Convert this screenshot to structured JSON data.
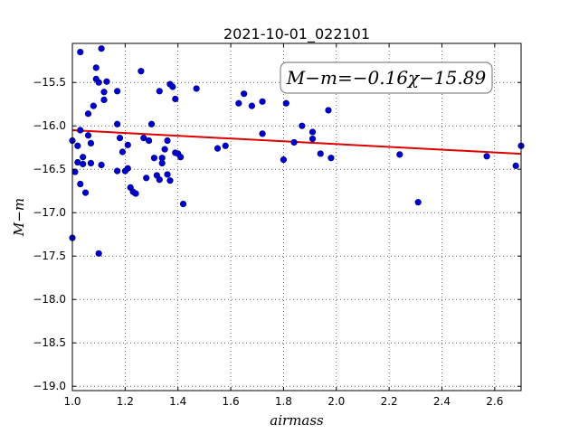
{
  "chart_data": {
    "type": "scatter",
    "title": "2021-10-01_022101",
    "xlabel": "airmass",
    "ylabel": "M−m",
    "xlim": [
      1.0,
      2.7
    ],
    "ylim": [
      -19.05,
      -15.05
    ],
    "y_inverted": true,
    "grid": true,
    "grid_style": "dotted",
    "x_ticks": [
      1.0,
      1.2,
      1.4,
      1.6,
      1.8,
      2.0,
      2.2,
      2.4,
      2.6
    ],
    "x_tick_labels": [
      "1.0",
      "1.2",
      "1.4",
      "1.6",
      "1.8",
      "2.0",
      "2.2",
      "2.4",
      "2.6"
    ],
    "y_ticks": [
      -15.5,
      -16.0,
      -16.5,
      -17.0,
      -17.5,
      -18.0,
      -18.5,
      -19.0
    ],
    "y_tick_labels": [
      "−15.5",
      "−16.0",
      "−16.5",
      "−17.0",
      "−17.5",
      "−18.0",
      "−18.5",
      "−19.0"
    ],
    "annotation": "M−m=−0.16χ−15.89",
    "marker_color": "#0000cc",
    "marker_edge_color": "#00007a",
    "fit_color": "#dd0000",
    "fit": {
      "slope": -0.16,
      "intercept": -15.89
    },
    "points": [
      [
        1.0,
        -16.17
      ],
      [
        1.0,
        -17.29
      ],
      [
        1.01,
        -16.53
      ],
      [
        1.02,
        -16.42
      ],
      [
        1.02,
        -16.23
      ],
      [
        1.03,
        -15.15
      ],
      [
        1.03,
        -16.05
      ],
      [
        1.03,
        -16.67
      ],
      [
        1.04,
        -16.36
      ],
      [
        1.04,
        -16.44
      ],
      [
        1.05,
        -16.77
      ],
      [
        1.06,
        -15.86
      ],
      [
        1.06,
        -16.11
      ],
      [
        1.07,
        -16.43
      ],
      [
        1.07,
        -16.2
      ],
      [
        1.08,
        -15.77
      ],
      [
        1.09,
        -15.33
      ],
      [
        1.09,
        -15.46
      ],
      [
        1.1,
        -15.5
      ],
      [
        1.1,
        -17.47
      ],
      [
        1.11,
        -15.11
      ],
      [
        1.11,
        -16.45
      ],
      [
        1.12,
        -15.7
      ],
      [
        1.12,
        -15.61
      ],
      [
        1.13,
        -15.49
      ],
      [
        1.17,
        -16.52
      ],
      [
        1.17,
        -15.98
      ],
      [
        1.17,
        -15.6
      ],
      [
        1.18,
        -16.14
      ],
      [
        1.19,
        -16.3
      ],
      [
        1.2,
        -16.52
      ],
      [
        1.21,
        -16.22
      ],
      [
        1.21,
        -16.49
      ],
      [
        1.22,
        -16.71
      ],
      [
        1.23,
        -16.76
      ],
      [
        1.24,
        -16.78
      ],
      [
        1.26,
        -15.37
      ],
      [
        1.27,
        -16.14
      ],
      [
        1.28,
        -16.6
      ],
      [
        1.29,
        -16.17
      ],
      [
        1.3,
        -15.98
      ],
      [
        1.31,
        -16.37
      ],
      [
        1.32,
        -16.57
      ],
      [
        1.33,
        -16.62
      ],
      [
        1.33,
        -15.6
      ],
      [
        1.34,
        -16.37
      ],
      [
        1.34,
        -16.43
      ],
      [
        1.35,
        -16.27
      ],
      [
        1.36,
        -16.56
      ],
      [
        1.36,
        -16.17
      ],
      [
        1.37,
        -15.52
      ],
      [
        1.37,
        -16.63
      ],
      [
        1.38,
        -15.55
      ],
      [
        1.39,
        -15.69
      ],
      [
        1.39,
        -16.31
      ],
      [
        1.4,
        -16.32
      ],
      [
        1.41,
        -16.36
      ],
      [
        1.42,
        -16.9
      ],
      [
        1.47,
        -15.57
      ],
      [
        1.55,
        -16.26
      ],
      [
        1.58,
        -16.23
      ],
      [
        1.63,
        -15.74
      ],
      [
        1.65,
        -15.63
      ],
      [
        1.68,
        -15.77
      ],
      [
        1.72,
        -16.09
      ],
      [
        1.72,
        -15.72
      ],
      [
        1.8,
        -16.39
      ],
      [
        1.81,
        -15.74
      ],
      [
        1.84,
        -16.19
      ],
      [
        1.87,
        -16.0
      ],
      [
        1.91,
        -16.15
      ],
      [
        1.91,
        -16.07
      ],
      [
        1.94,
        -16.32
      ],
      [
        1.97,
        -15.82
      ],
      [
        1.98,
        -16.37
      ],
      [
        2.24,
        -16.33
      ],
      [
        2.31,
        -16.88
      ],
      [
        2.57,
        -16.35
      ],
      [
        2.68,
        -16.46
      ],
      [
        2.7,
        -16.23
      ]
    ]
  }
}
